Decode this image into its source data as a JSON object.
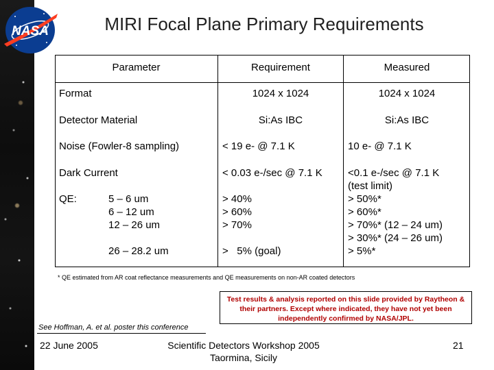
{
  "logo_text": "NASA",
  "title": "MIRI Focal Plane Primary Requirements",
  "table": {
    "headers": {
      "parameter": "Parameter",
      "requirement": "Requirement",
      "measured": "Measured"
    },
    "format": {
      "label": "Format",
      "requirement": "1024 x 1024",
      "measured": "1024 x 1024"
    },
    "detector_material": {
      "label": "Detector Material",
      "requirement": "Si:As IBC",
      "measured": "Si:As IBC"
    },
    "noise": {
      "label": "Noise (Fowler-8 sampling)",
      "requirement": "< 19 e- @ 7.1 K",
      "measured": "10 e- @ 7.1 K"
    },
    "dark_current": {
      "label": "Dark Current",
      "requirement": "< 0.03 e-/sec @ 7.1 K",
      "measured": [
        "<0.1 e-/sec @ 7.1 K",
        "(test limit)"
      ]
    },
    "qe": {
      "label": "QE:",
      "ranges": [
        "5 – 6 um",
        "6 – 12 um",
        "12 – 26 um",
        "26 – 28.2 um"
      ],
      "requirements": [
        "> 40%",
        "> 60%",
        "> 70%",
        ">   5% (goal)"
      ],
      "measured": [
        "> 50%*",
        "> 60%*",
        "> 70%* (12 – 24 um)",
        "> 30%* (24 – 26 um)",
        "> 5%*"
      ]
    }
  },
  "footnote": "* QE estimated from AR coat reflectance measurements and QE measurements on non-AR coated detectors",
  "disclaimer": "Test results & analysis reported on this slide provided by Raytheon & their partners. Except where indicated, they have not yet been independently confirmed by NASA/JPL.",
  "see_also": "See Hoffman, A. et al. poster this conference",
  "footer": {
    "date": "22 June 2005",
    "event_line1": "Scientific Detectors Workshop 2005",
    "event_line2": "Taormina, Sicily",
    "page_number": "21"
  },
  "colors": {
    "logo_blue": "#0b3d91",
    "logo_red": "#fc3d21",
    "disclaimer_text": "#b00000",
    "star_field": "#111111"
  }
}
